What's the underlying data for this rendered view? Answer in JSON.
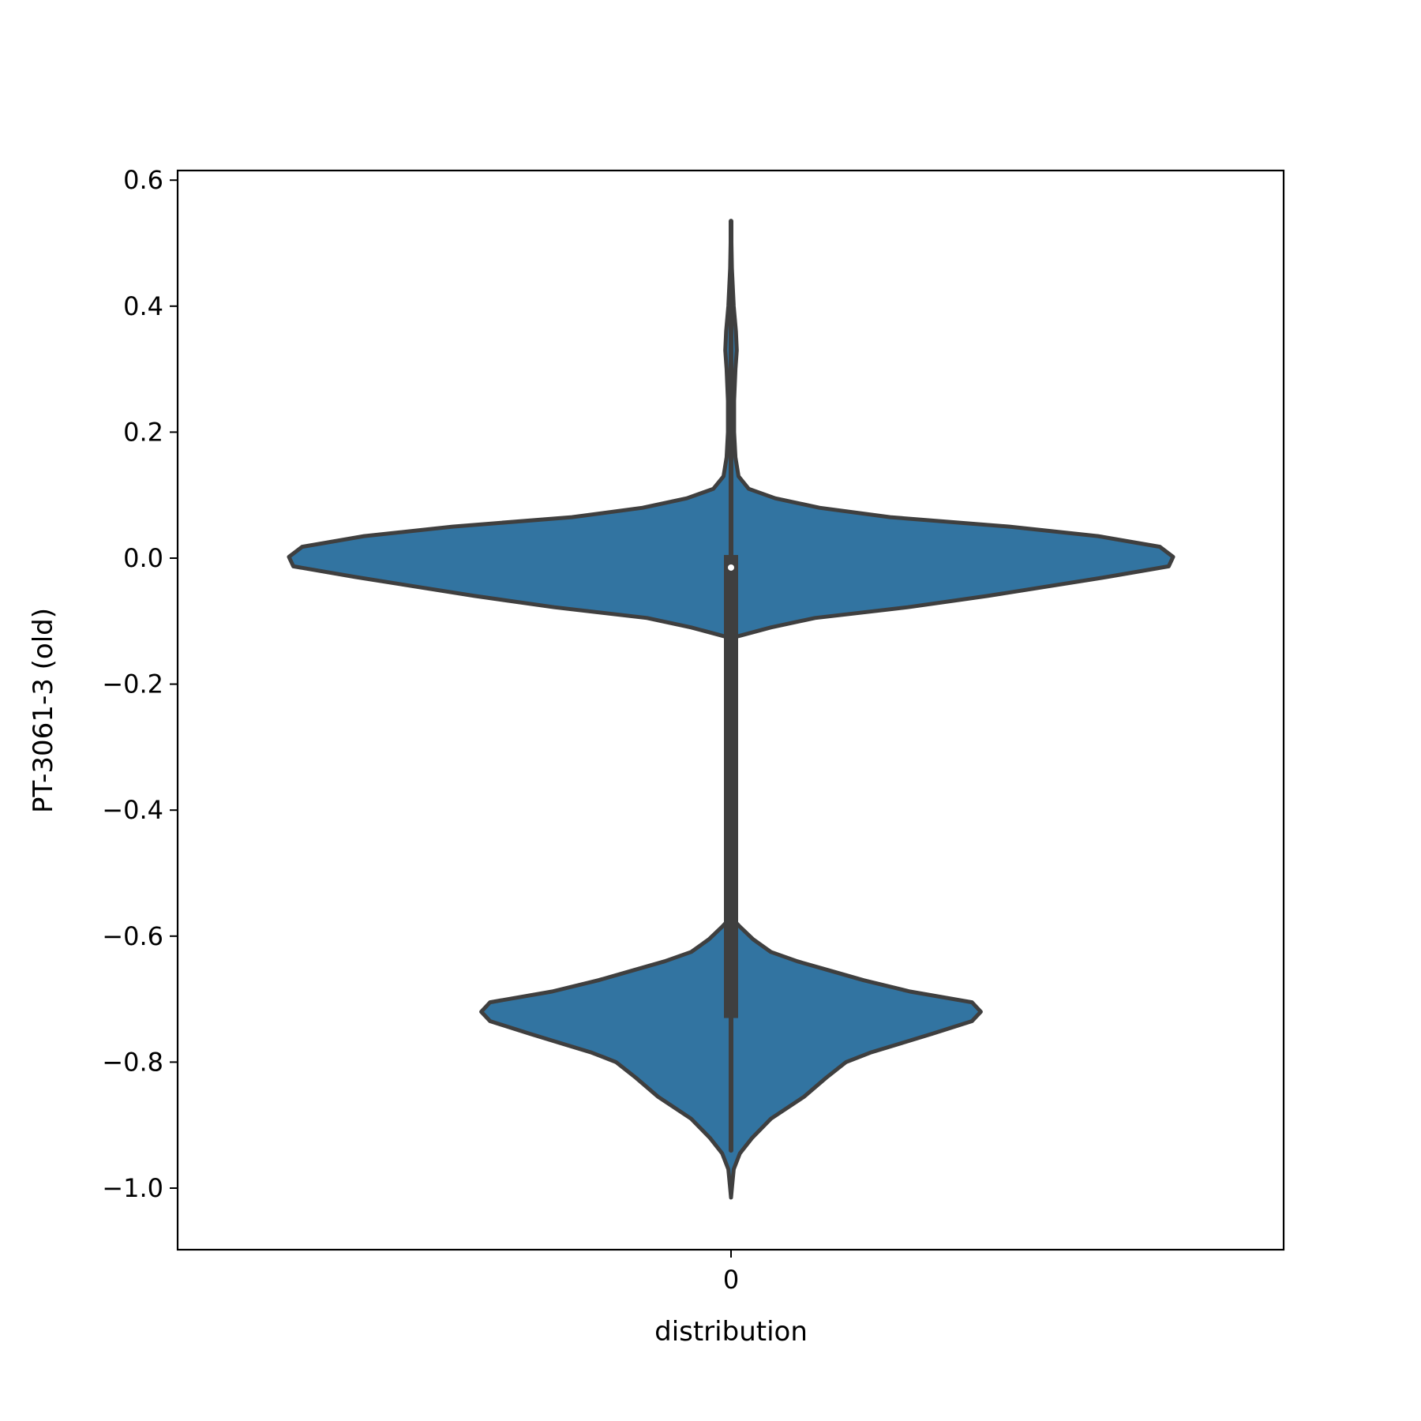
{
  "chart_data": {
    "type": "violin",
    "title": "",
    "xlabel": "distribution",
    "ylabel": "PT-3061-3 (old)",
    "categories": [
      "0"
    ],
    "ylim": [
      -1.09,
      0.62
    ],
    "yticks": [
      0.6,
      0.4,
      0.2,
      0.0,
      -0.2,
      -0.4,
      -0.6,
      -0.8,
      -1.0
    ],
    "ytick_labels": [
      "0.6",
      "0.4",
      "0.2",
      "0.0",
      "−0.2",
      "−0.4",
      "−0.6",
      "−0.8",
      "−1.0"
    ],
    "grid": false,
    "fill_color": "#3274a1",
    "edge_color": "#3f3f3f",
    "density_profile": [
      {
        "y": 0.535,
        "w": 0.0
      },
      {
        "y": 0.46,
        "w": 0.002
      },
      {
        "y": 0.4,
        "w": 0.006
      },
      {
        "y": 0.36,
        "w": 0.011
      },
      {
        "y": 0.33,
        "w": 0.013
      },
      {
        "y": 0.3,
        "w": 0.01
      },
      {
        "y": 0.25,
        "w": 0.007
      },
      {
        "y": 0.2,
        "w": 0.007
      },
      {
        "y": 0.16,
        "w": 0.01
      },
      {
        "y": 0.13,
        "w": 0.017
      },
      {
        "y": 0.11,
        "w": 0.04
      },
      {
        "y": 0.095,
        "w": 0.1
      },
      {
        "y": 0.08,
        "w": 0.2
      },
      {
        "y": 0.065,
        "w": 0.36
      },
      {
        "y": 0.05,
        "w": 0.63
      },
      {
        "y": 0.035,
        "w": 0.83
      },
      {
        "y": 0.018,
        "w": 0.97
      },
      {
        "y": 0.002,
        "w": 1.0
      },
      {
        "y": -0.013,
        "w": 0.99
      },
      {
        "y": -0.03,
        "w": 0.85
      },
      {
        "y": -0.06,
        "w": 0.58
      },
      {
        "y": -0.078,
        "w": 0.4
      },
      {
        "y": -0.095,
        "w": 0.19
      },
      {
        "y": -0.11,
        "w": 0.09
      },
      {
        "y": -0.125,
        "w": 0.01
      },
      {
        "y": -0.13,
        "w": 0.0
      }
    ],
    "lower_profile": [
      {
        "y": -0.57,
        "w": 0.0
      },
      {
        "y": -0.585,
        "w": 0.02
      },
      {
        "y": -0.605,
        "w": 0.05
      },
      {
        "y": -0.625,
        "w": 0.09
      },
      {
        "y": -0.64,
        "w": 0.15
      },
      {
        "y": -0.655,
        "w": 0.225
      },
      {
        "y": -0.67,
        "w": 0.3
      },
      {
        "y": -0.688,
        "w": 0.405
      },
      {
        "y": -0.705,
        "w": 0.545
      },
      {
        "y": -0.72,
        "w": 0.565
      },
      {
        "y": -0.735,
        "w": 0.545
      },
      {
        "y": -0.755,
        "w": 0.455
      },
      {
        "y": -0.77,
        "w": 0.385
      },
      {
        "y": -0.785,
        "w": 0.315
      },
      {
        "y": -0.8,
        "w": 0.26
      },
      {
        "y": -0.825,
        "w": 0.215
      },
      {
        "y": -0.855,
        "w": 0.165
      },
      {
        "y": -0.89,
        "w": 0.09
      },
      {
        "y": -0.92,
        "w": 0.048
      },
      {
        "y": -0.945,
        "w": 0.02
      },
      {
        "y": -0.97,
        "w": 0.006
      },
      {
        "y": -1.0,
        "w": 0.002
      },
      {
        "y": -1.015,
        "w": 0.0
      }
    ],
    "box": {
      "q1": -0.73,
      "q3": 0.005,
      "median": -0.015,
      "whisker_low": -0.94,
      "whisker_high": 0.535
    }
  }
}
